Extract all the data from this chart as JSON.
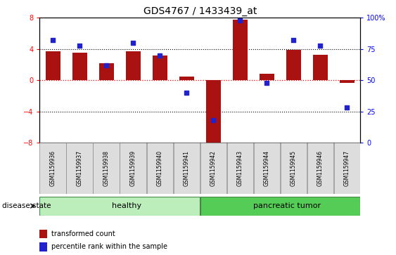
{
  "title": "GDS4767 / 1433439_at",
  "samples": [
    "GSM1159936",
    "GSM1159937",
    "GSM1159938",
    "GSM1159939",
    "GSM1159940",
    "GSM1159941",
    "GSM1159942",
    "GSM1159943",
    "GSM1159944",
    "GSM1159945",
    "GSM1159946",
    "GSM1159947"
  ],
  "bar_values": [
    3.7,
    3.5,
    2.2,
    3.7,
    3.2,
    0.5,
    -8.1,
    7.8,
    0.8,
    3.9,
    3.3,
    -0.3
  ],
  "dot_values": [
    82,
    78,
    62,
    80,
    70,
    40,
    18,
    98,
    48,
    82,
    78,
    28
  ],
  "bar_color": "#aa1111",
  "dot_color": "#2222cc",
  "ylim_left": [
    -8,
    8
  ],
  "ylim_right": [
    0,
    100
  ],
  "yticks_left": [
    -8,
    -4,
    0,
    4,
    8
  ],
  "yticks_right": [
    0,
    25,
    50,
    75,
    100
  ],
  "yticklabels_right": [
    "0",
    "25",
    "50",
    "75",
    "100%"
  ],
  "hline_y": 0,
  "dotted_lines": [
    -4,
    4
  ],
  "healthy_label": "healthy",
  "tumor_label": "pancreatic tumor",
  "healthy_color": "#bbeebb",
  "tumor_color": "#55cc55",
  "disease_state_label": "disease state",
  "legend_bar_label": "transformed count",
  "legend_dot_label": "percentile rank within the sample",
  "bar_width": 0.55,
  "tick_label_bgcolor": "#dddddd",
  "background_color": "#ffffff",
  "title_fontsize": 10,
  "tick_fontsize": 7,
  "label_fontsize": 8
}
